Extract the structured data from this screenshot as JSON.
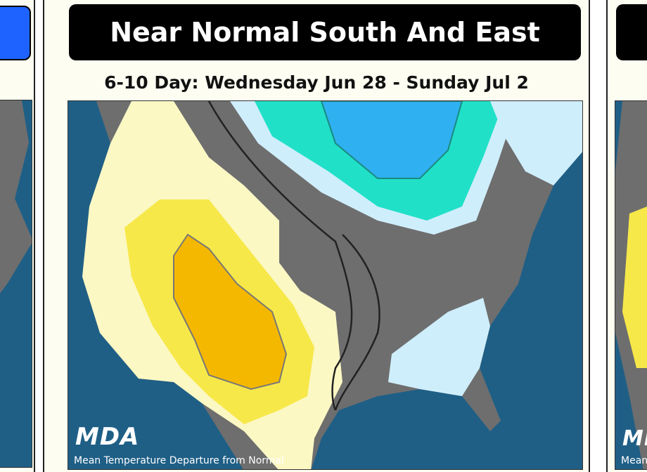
{
  "slide": {
    "title": "Near Normal South And East",
    "subtitle": "6-10 Day: Wednesday Jun 28 - Sunday Jul 2",
    "logo": "MDA",
    "caption": "Mean Temperature Departure from Normal"
  }
}
